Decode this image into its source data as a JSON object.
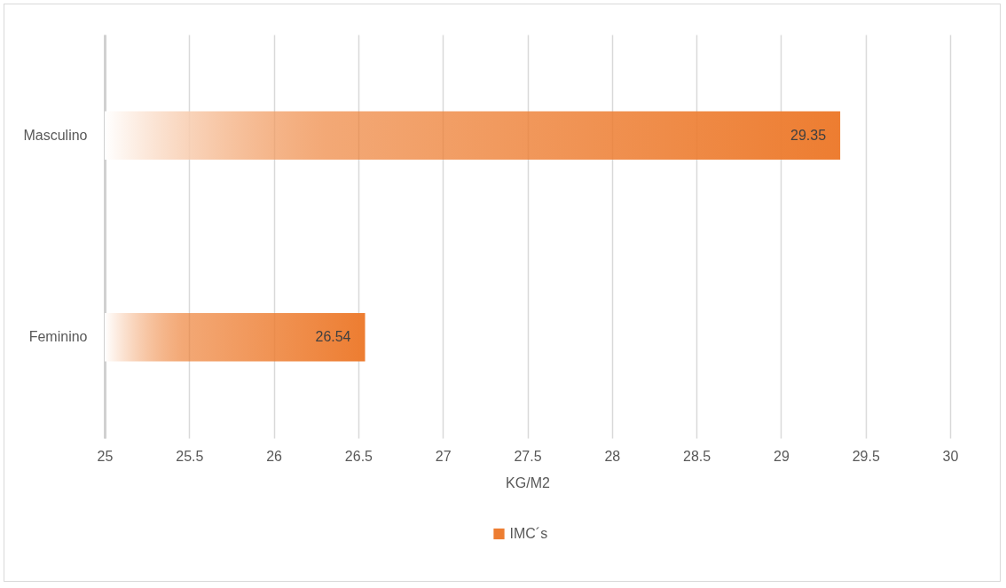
{
  "chart_data": {
    "type": "bar",
    "orientation": "horizontal",
    "categories": [
      "Masculino",
      "Feminino"
    ],
    "series": [
      {
        "name": "IMC´s",
        "color": "#ed7d31",
        "values": [
          29.35,
          26.54
        ]
      }
    ],
    "xlim": [
      25,
      30
    ],
    "xticks": [
      25,
      25.5,
      26,
      26.5,
      27,
      27.5,
      28,
      28.5,
      29,
      29.5,
      30
    ],
    "xlabel": "KG/M2",
    "grid": "x",
    "legend": "bottom",
    "data_labels": true
  }
}
